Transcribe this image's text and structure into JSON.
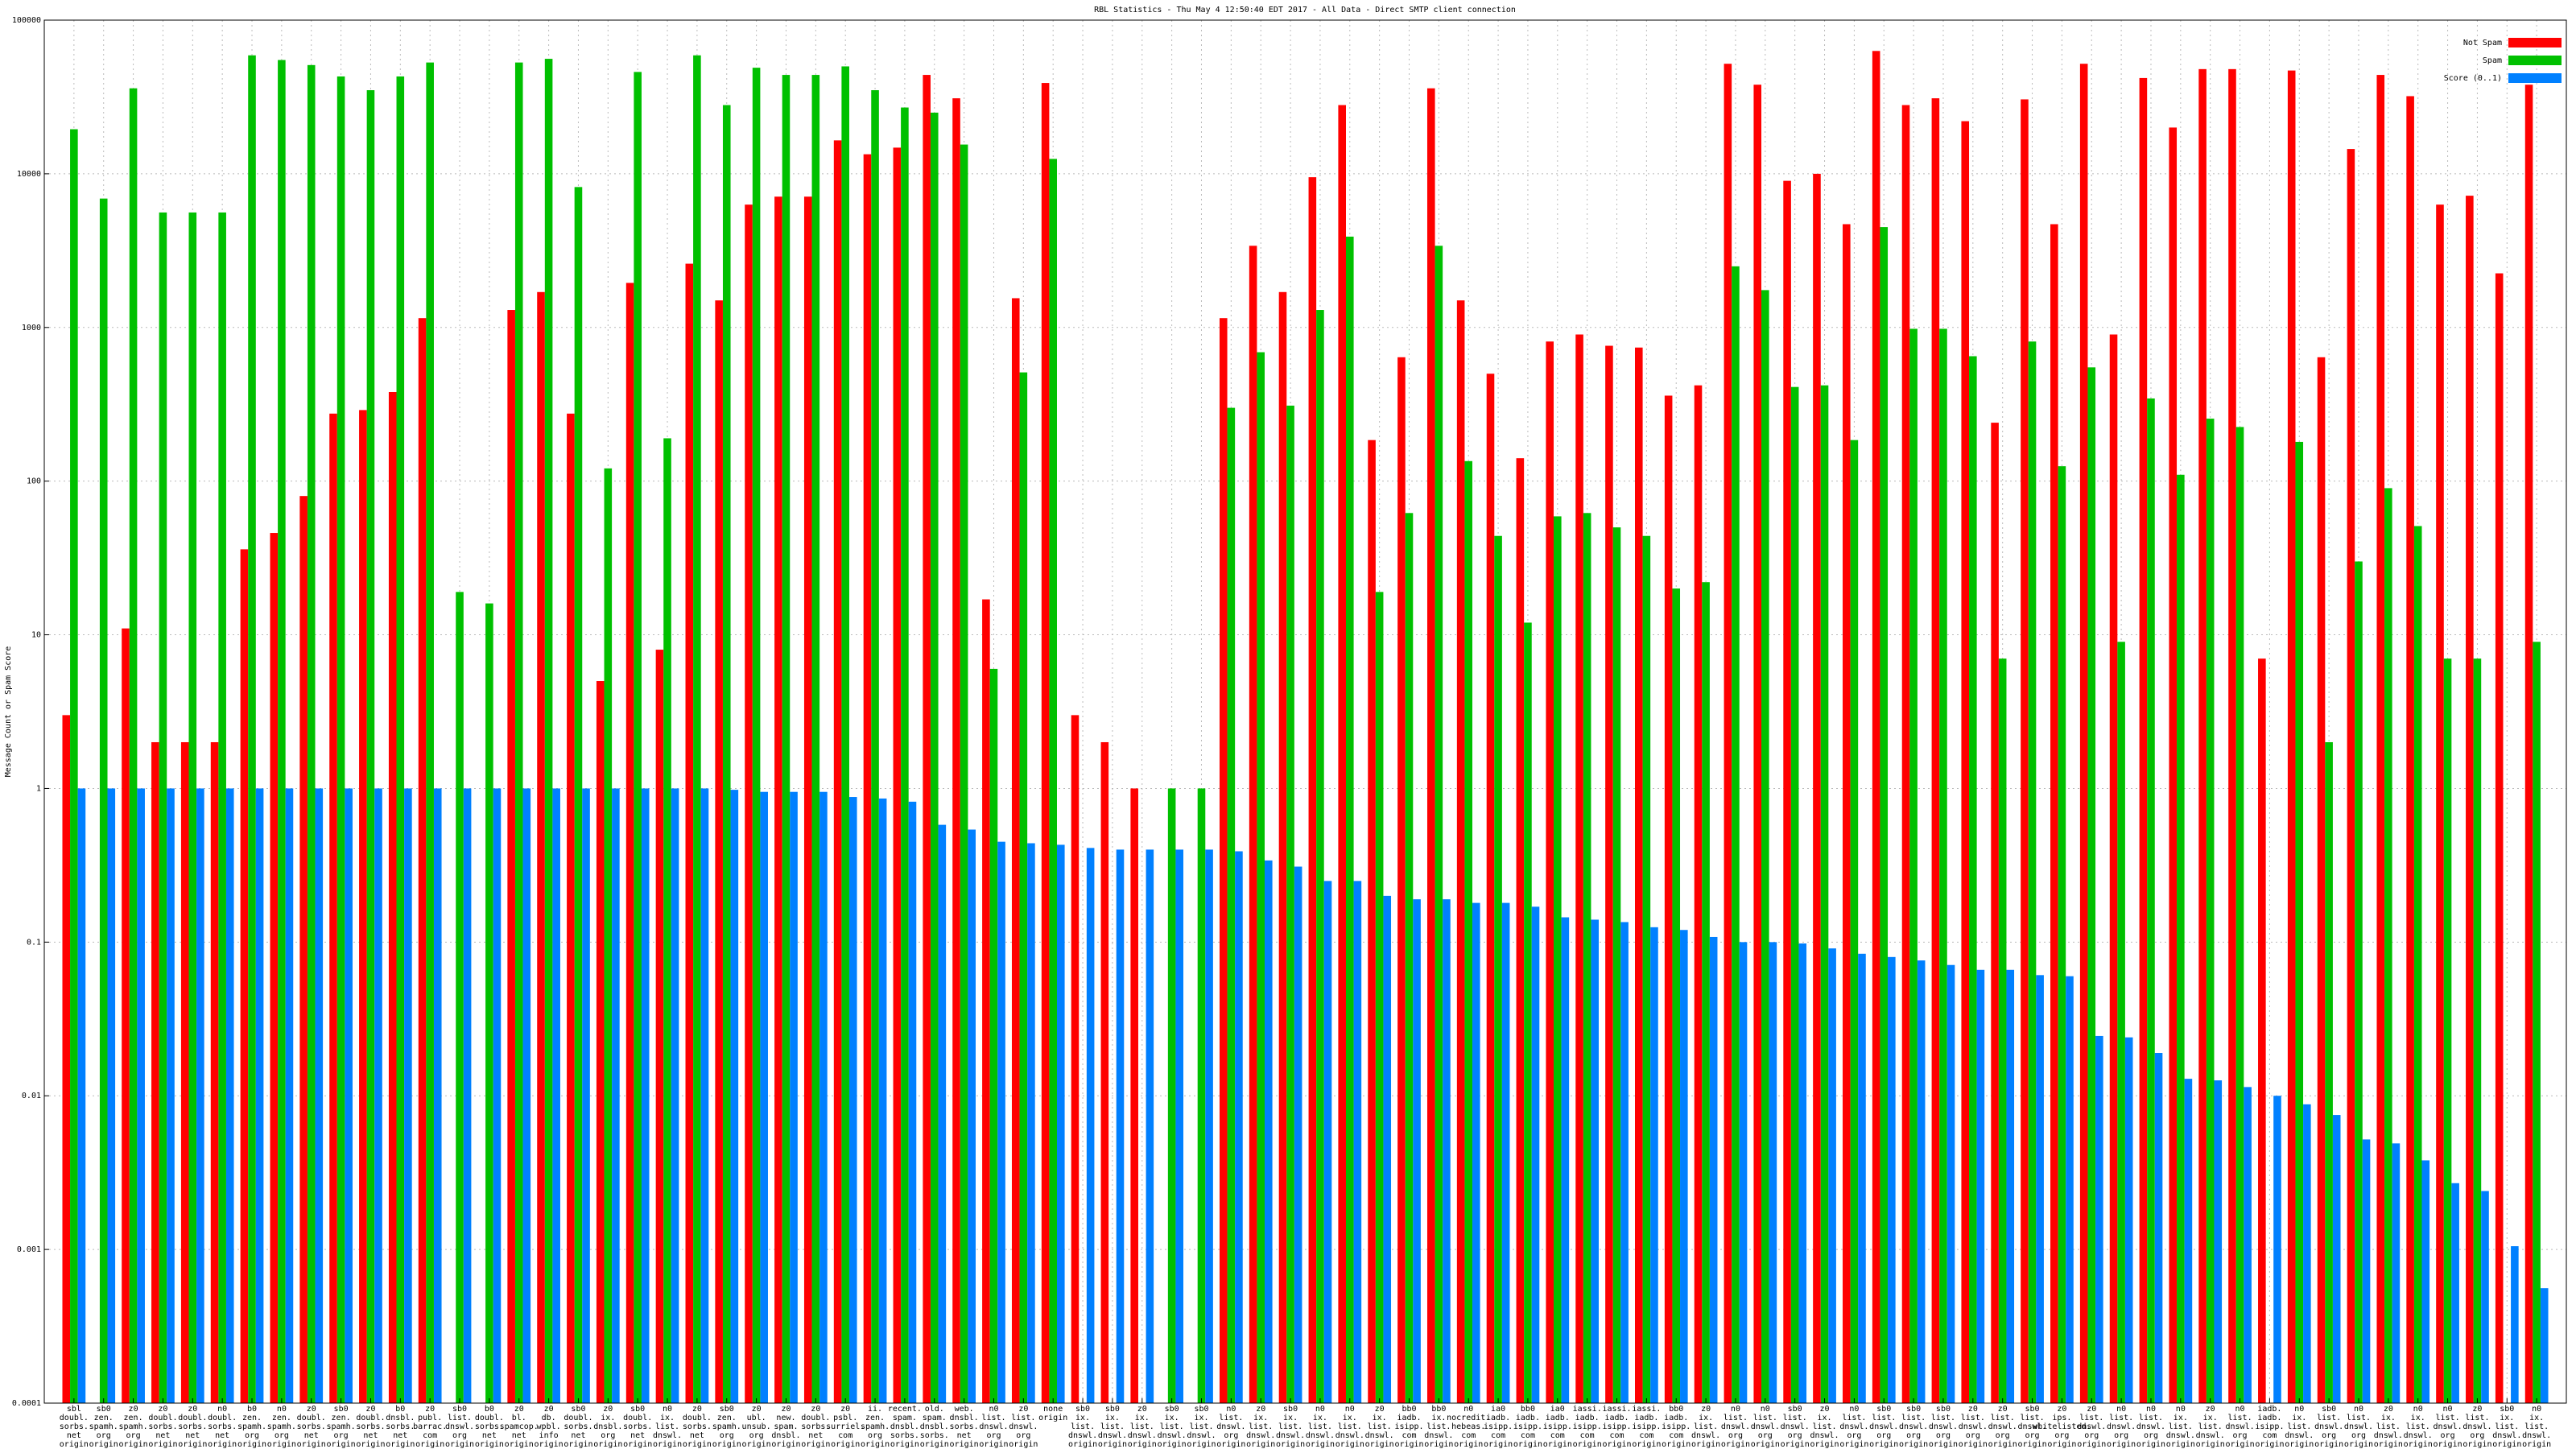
{
  "chart_data": {
    "type": "bar",
    "title": "RBL Statistics - Thu May  4 12:50:40 EDT 2017 - All Data - Direct SMTP client connection",
    "y_label": "Message Count or Spam Score",
    "log_scale": true,
    "grid": true,
    "legend_corner": "top-right",
    "ylim": [
      0.0001,
      100000
    ],
    "yticks": [
      0.0001,
      0.001,
      0.01,
      0.1,
      1,
      10,
      100,
      1000,
      10000,
      100000
    ],
    "categories": [
      [
        "sbl",
        "doubl.",
        "sorbs.",
        "net",
        "origin"
      ],
      [
        "sb0",
        "zen.",
        "spamh.",
        "org",
        "origin"
      ],
      [
        "z0",
        "zen.",
        "spamh.",
        "org",
        "origin"
      ],
      [
        "z0",
        "doubl.",
        "sorbs.",
        "net",
        "origin"
      ],
      [
        "z0",
        "doubl.",
        "sorbs.",
        "net",
        "origin"
      ],
      [
        "n0",
        "doubl.",
        "sorbs.",
        "net",
        "origin"
      ],
      [
        "b0",
        "zen.",
        "spamh.",
        "org",
        "origin"
      ],
      [
        "n0",
        "zen.",
        "spamh.",
        "org",
        "origin"
      ],
      [
        "z0",
        "doubl.",
        "sorbs.",
        "net",
        "origin"
      ],
      [
        "sb0",
        "zen.",
        "spamh.",
        "org",
        "origin"
      ],
      [
        "z0",
        "doubl.",
        "sorbs.",
        "net",
        "origin"
      ],
      [
        "b0",
        "dnsbl.",
        "sorbs.",
        "net",
        "origin"
      ],
      [
        "z0",
        "publ.",
        "barrac.",
        "com",
        "origin"
      ],
      [
        "sb0",
        "list.",
        "dnswl.",
        "org",
        "origin"
      ],
      [
        "b0",
        "doubl.",
        "sorbs.",
        "net",
        "origin"
      ],
      [
        "z0",
        "bl.",
        "spamcop.",
        "net",
        "origin"
      ],
      [
        "z0",
        "db.",
        "wpbl.",
        "info",
        "origin"
      ],
      [
        "sb0",
        "doubl.",
        "sorbs.",
        "net",
        "origin"
      ],
      [
        "z0",
        "ix.",
        "dnsbl.",
        "org",
        "origin"
      ],
      [
        "sb0",
        "doubl.",
        "sorbs.",
        "net",
        "origin"
      ],
      [
        "n0",
        "ix.",
        "list.",
        "dnswl.",
        "origin"
      ],
      [
        "z0",
        "doubl.",
        "sorbs.",
        "net",
        "origin"
      ],
      [
        "sb0",
        "zen.",
        "spamh.",
        "org",
        "origin"
      ],
      [
        "z0",
        "ubl.",
        "unsub.",
        "org",
        "origin"
      ],
      [
        "z0",
        "new.",
        "spam.",
        "dnsbl.",
        "origin"
      ],
      [
        "z0",
        "doubl.",
        "sorbs.",
        "net",
        "origin"
      ],
      [
        "z0",
        "psbl.",
        "surriel.",
        "com",
        "origin"
      ],
      [
        "ii.",
        "zen.",
        "spamh.",
        "org",
        "origin"
      ],
      [
        "recent.",
        "spam.",
        "dnsbl.",
        "sorbs.",
        "origin"
      ],
      [
        "old.",
        "spam.",
        "dnsbl.",
        "sorbs.",
        "origin"
      ],
      [
        "web.",
        "dnsbl.",
        "sorbs.",
        "net",
        "origin"
      ],
      [
        "n0",
        "list.",
        "dnswl.",
        "org",
        "origin"
      ],
      [
        "z0",
        "list.",
        "dnswl.",
        "org",
        "origin"
      ],
      [
        "none",
        "origin"
      ],
      [
        "sb0",
        "ix.",
        "list.",
        "dnswl.",
        "origin"
      ],
      [
        "sb0",
        "ix.",
        "list.",
        "dnswl.",
        "origin"
      ],
      [
        "z0",
        "ix.",
        "list.",
        "dnswl.",
        "origin"
      ],
      [
        "sb0",
        "ix.",
        "list.",
        "dnswl.",
        "origin"
      ],
      [
        "sb0",
        "ix.",
        "list.",
        "dnswl.",
        "origin"
      ],
      [
        "n0",
        "list.",
        "dnswl.",
        "org",
        "origin"
      ],
      [
        "z0",
        "ix.",
        "list.",
        "dnswl.",
        "origin"
      ],
      [
        "sb0",
        "ix.",
        "list.",
        "dnswl.",
        "origin"
      ],
      [
        "n0",
        "ix.",
        "list.",
        "dnswl.",
        "origin"
      ],
      [
        "n0",
        "ix.",
        "list.",
        "dnswl.",
        "origin"
      ],
      [
        "z0",
        "ix.",
        "list.",
        "dnswl.",
        "origin"
      ],
      [
        "bb0",
        "iadb.",
        "isipp.",
        "com",
        "origin"
      ],
      [
        "bb0",
        "ix.",
        "list.",
        "dnswl.",
        "origin"
      ],
      [
        "n0",
        "nocredit.",
        "hebeas.",
        "com",
        "origin"
      ],
      [
        "ia0",
        "iadb.",
        "isipp.",
        "com",
        "origin"
      ],
      [
        "bb0",
        "iadb.",
        "isipp.",
        "com",
        "origin"
      ],
      [
        "ia0",
        "iadb.",
        "isipp.",
        "com",
        "origin"
      ],
      [
        "iassi.",
        "iadb.",
        "isipp.",
        "com",
        "origin"
      ],
      [
        "iassi.",
        "iadb.",
        "isipp.",
        "com",
        "origin"
      ],
      [
        "iassi.",
        "iadb.",
        "isipp.",
        "com",
        "origin"
      ],
      [
        "bb0",
        "iadb.",
        "isipp.",
        "com",
        "origin"
      ],
      [
        "z0",
        "ix.",
        "list.",
        "dnswl.",
        "origin"
      ],
      [
        "n0",
        "list.",
        "dnswl.",
        "org",
        "origin"
      ],
      [
        "n0",
        "list.",
        "dnswl.",
        "org",
        "origin"
      ],
      [
        "sb0",
        "list.",
        "dnswl.",
        "org",
        "origin"
      ],
      [
        "z0",
        "ix.",
        "list.",
        "dnswl.",
        "origin"
      ],
      [
        "n0",
        "list.",
        "dnswl.",
        "org",
        "origin"
      ],
      [
        "sb0",
        "list.",
        "dnswl.",
        "org",
        "origin"
      ],
      [
        "sb0",
        "list.",
        "dnswl.",
        "org",
        "origin"
      ],
      [
        "sb0",
        "list.",
        "dnswl.",
        "org",
        "origin"
      ],
      [
        "z0",
        "list.",
        "dnswl.",
        "org",
        "origin"
      ],
      [
        "z0",
        "list.",
        "dnswl.",
        "org",
        "origin"
      ],
      [
        "sb0",
        "list.",
        "dnswl.",
        "org",
        "origin"
      ],
      [
        "z0",
        "ips.",
        "whitelisted.",
        "org",
        "origin"
      ],
      [
        "z0",
        "list.",
        "dnswl.",
        "org",
        "origin"
      ],
      [
        "n0",
        "list.",
        "dnswl.",
        "org",
        "origin"
      ],
      [
        "n0",
        "list.",
        "dnswl.",
        "org",
        "origin"
      ],
      [
        "n0",
        "ix.",
        "list.",
        "dnswl.",
        "origin"
      ],
      [
        "z0",
        "ix.",
        "list.",
        "dnswl.",
        "origin"
      ],
      [
        "n0",
        "list.",
        "dnswl.",
        "org",
        "origin"
      ],
      [
        "iadb.",
        "iadb.",
        "isipp.",
        "com",
        "origin"
      ],
      [
        "n0",
        "ix.",
        "list.",
        "dnswl.",
        "origin"
      ],
      [
        "sb0",
        "list.",
        "dnswl.",
        "org",
        "origin"
      ],
      [
        "n0",
        "list.",
        "dnswl.",
        "org",
        "origin"
      ],
      [
        "z0",
        "ix.",
        "list.",
        "dnswl.",
        "origin"
      ],
      [
        "n0",
        "ix.",
        "list.",
        "dnswl.",
        "origin"
      ],
      [
        "n0",
        "list.",
        "dnswl.",
        "org",
        "origin"
      ],
      [
        "z0",
        "list.",
        "dnswl.",
        "org",
        "origin"
      ],
      [
        "sb0",
        "ix.",
        "list.",
        "dnswl.",
        "origin"
      ],
      [
        "n0",
        "ix.",
        "list.",
        "dnswl.",
        "origin"
      ]
    ],
    "series": [
      {
        "name": "Not Spam",
        "color": "#ff0000",
        "values": [
          3,
          null,
          11,
          2,
          2,
          2,
          36,
          46,
          80,
          275,
          290,
          380,
          1150,
          null,
          null,
          1300,
          1700,
          275,
          5,
          1950,
          8,
          2600,
          1500,
          6300,
          7100,
          7100,
          16500,
          13400,
          14800,
          44000,
          31000,
          17,
          1550,
          39000,
          3,
          2,
          1,
          null,
          null,
          1150,
          3400,
          1700,
          9500,
          28000,
          185,
          640,
          36000,
          1500,
          500,
          141,
          810,
          900,
          760,
          740,
          360,
          420,
          52000,
          38000,
          9000,
          10000,
          4700,
          63000,
          28000,
          31000,
          22000,
          240,
          30500,
          4700,
          52000,
          900,
          42000,
          20000,
          48000,
          48000,
          7,
          47000,
          640,
          14500,
          44000,
          32000,
          6300,
          7200,
          2250,
          38000
        ]
      },
      {
        "name": "Spam",
        "color": "#00c000",
        "values": [
          19500,
          6900,
          36000,
          5600,
          5600,
          5600,
          59000,
          55000,
          51000,
          43000,
          35000,
          43000,
          53000,
          19,
          16,
          53000,
          56000,
          8200,
          121,
          46000,
          190,
          59000,
          28000,
          49000,
          44000,
          44000,
          50000,
          35000,
          27000,
          25000,
          15500,
          6,
          510,
          12500,
          null,
          null,
          null,
          1,
          1,
          300,
          690,
          310,
          1300,
          3900,
          19,
          62,
          3400,
          135,
          44,
          12,
          59,
          62,
          50,
          44,
          20,
          22,
          2500,
          1750,
          410,
          420,
          185,
          4500,
          980,
          980,
          650,
          7,
          810,
          125,
          550,
          9,
          345,
          110,
          255,
          225,
          null,
          180,
          2,
          30,
          90,
          51,
          7,
          7,
          null,
          9
        ]
      },
      {
        "name": "Score (0..1)",
        "color": "#0080ff",
        "values": [
          1,
          1,
          1,
          1,
          1,
          1,
          1,
          1,
          1,
          1,
          1,
          1,
          1,
          1,
          1,
          1,
          1,
          1,
          1,
          1,
          1,
          1,
          0.98,
          0.95,
          0.95,
          0.95,
          0.88,
          0.86,
          0.82,
          0.58,
          0.54,
          0.45,
          0.44,
          0.43,
          0.41,
          0.4,
          0.4,
          0.4,
          0.4,
          0.39,
          0.34,
          0.31,
          0.25,
          0.25,
          0.2,
          0.19,
          0.19,
          0.18,
          0.18,
          0.17,
          0.145,
          0.14,
          0.135,
          0.125,
          0.12,
          0.108,
          0.1,
          0.1,
          0.098,
          0.091,
          0.084,
          0.08,
          0.076,
          0.071,
          0.066,
          0.066,
          0.061,
          0.06,
          0.0245,
          0.024,
          0.019,
          0.0129,
          0.0126,
          0.0114,
          0.01,
          0.0088,
          0.0075,
          0.0052,
          0.0049,
          0.0038,
          0.0027,
          0.0024,
          0.00105,
          0.00056
        ]
      }
    ]
  }
}
